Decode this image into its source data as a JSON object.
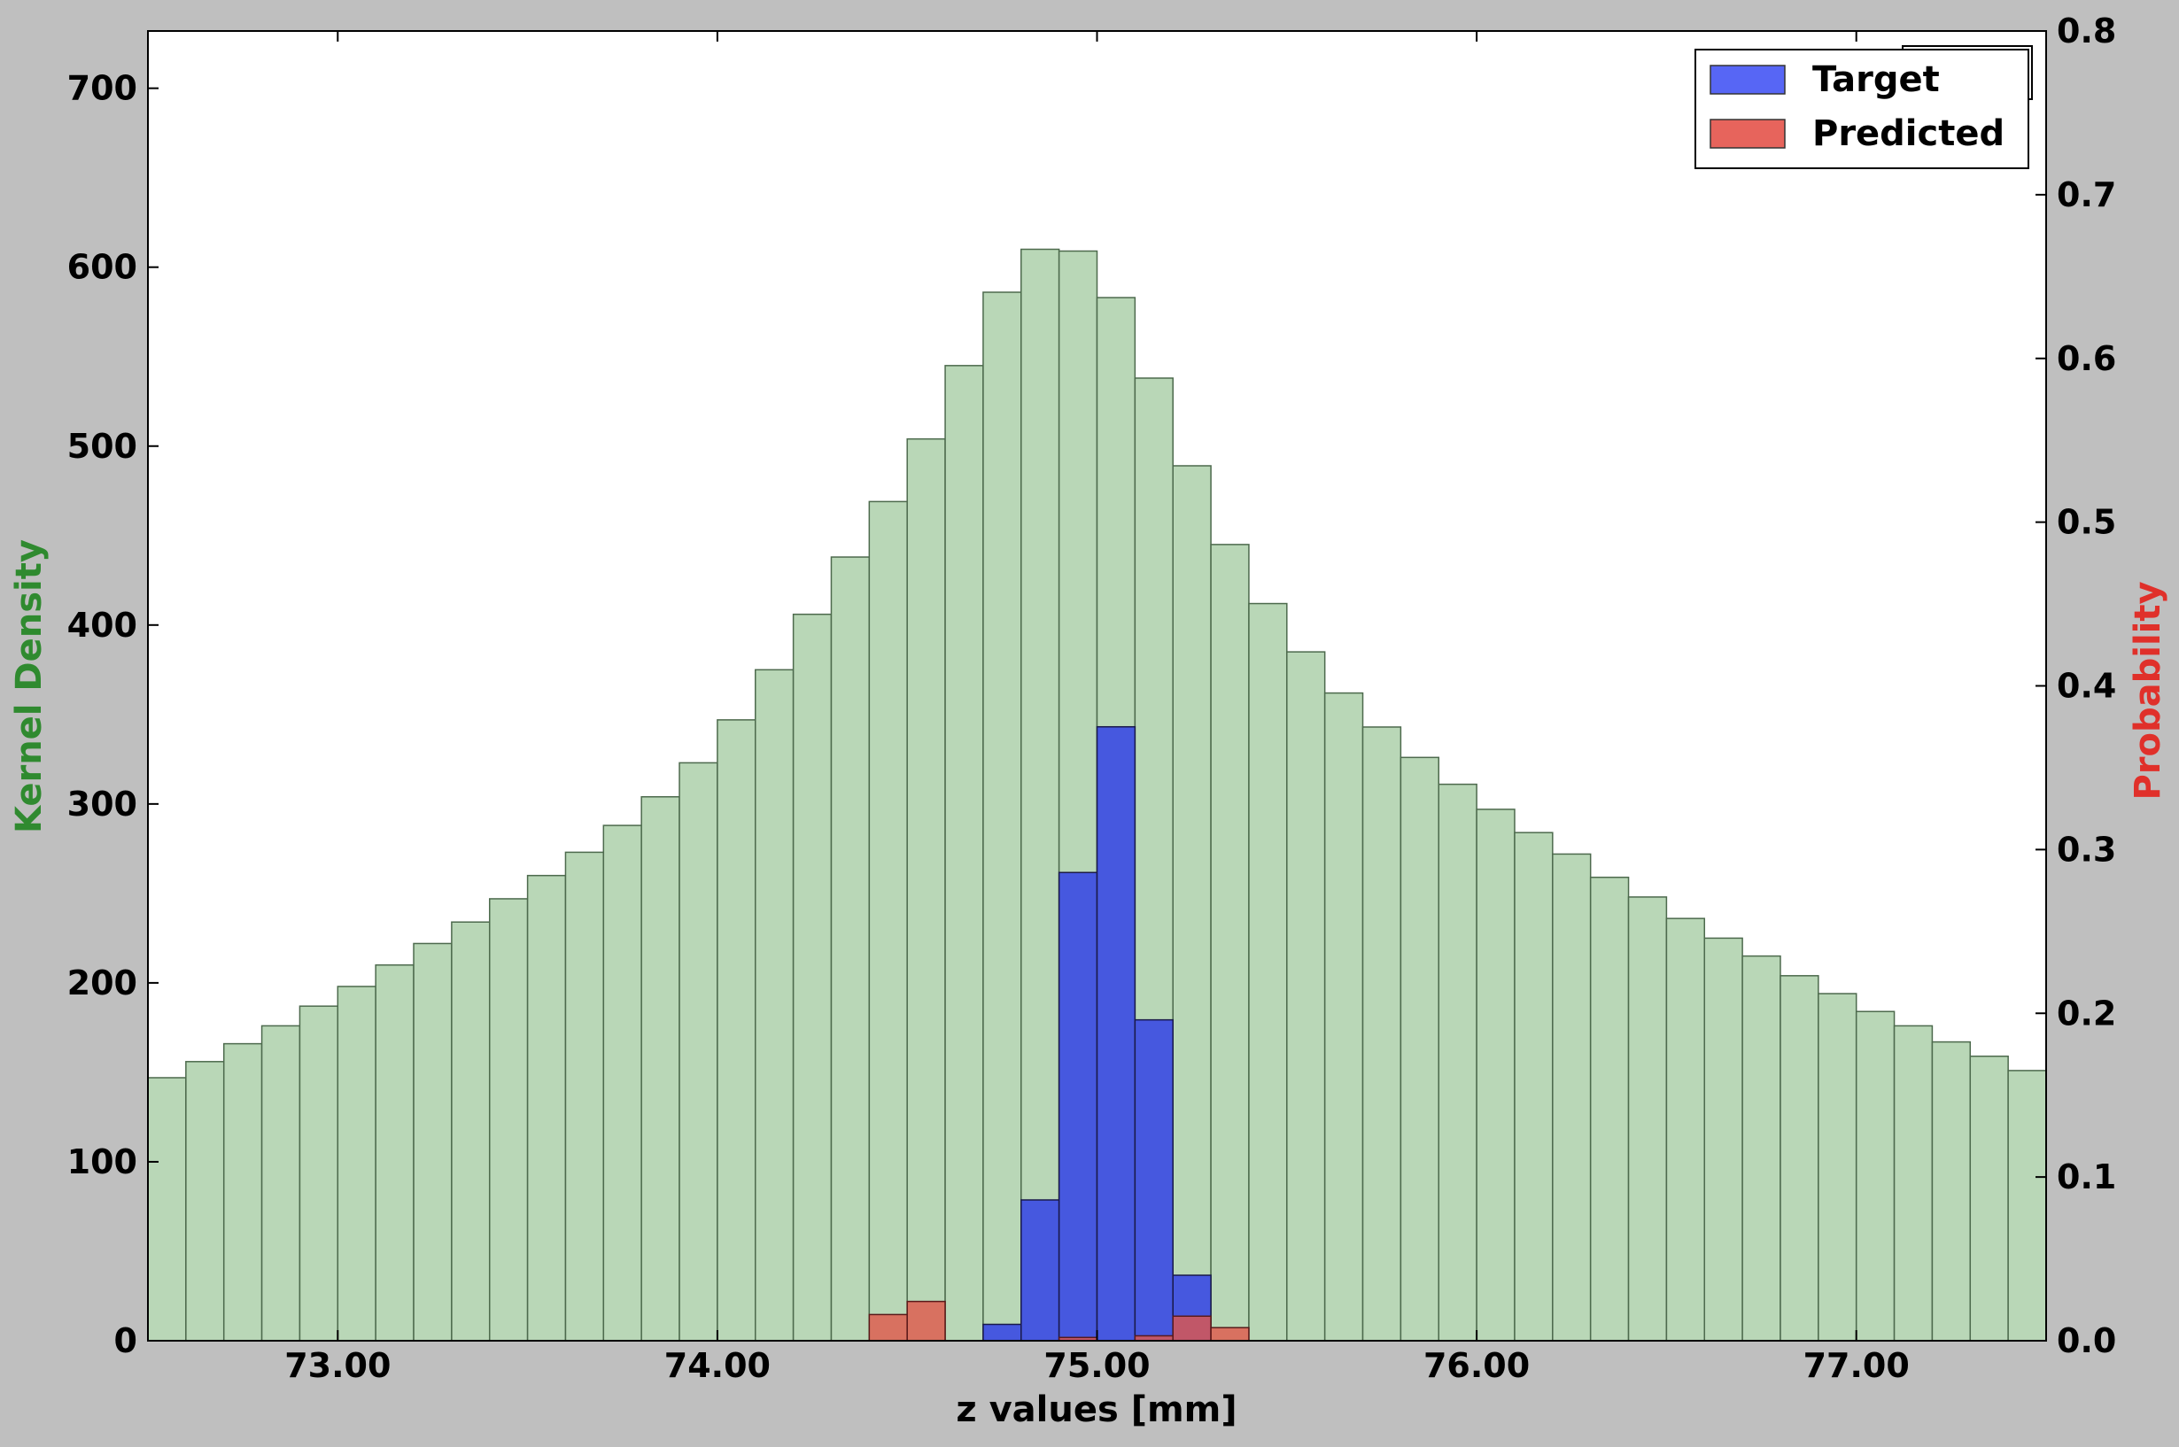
{
  "chart_data": {
    "type": "bar",
    "xlabel": "z values [mm]",
    "ylabel_left": "Kernel Density",
    "ylabel_right": "Probability",
    "xlim": [
      72.5,
      77.5
    ],
    "ylim_left": [
      0,
      732
    ],
    "ylim_right": [
      0,
      0.8
    ],
    "x_ticks": [
      73.0,
      74.0,
      75.0,
      76.0,
      77.0
    ],
    "x_tick_labels": [
      "73.00",
      "74.00",
      "75.00",
      "76.00",
      "77.00"
    ],
    "y_left_ticks": [
      0,
      100,
      200,
      300,
      400,
      500,
      600,
      700
    ],
    "y_left_tick_labels": [
      "0",
      "100",
      "200",
      "300",
      "400",
      "500",
      "600",
      "700"
    ],
    "y_right_ticks": [
      0.0,
      0.1,
      0.2,
      0.3,
      0.4,
      0.5,
      0.6,
      0.7,
      0.8
    ],
    "y_right_tick_labels": [
      "0.0",
      "0.1",
      "0.2",
      "0.3",
      "0.4",
      "0.5",
      "0.6",
      "0.7",
      "0.8"
    ],
    "bin_width": 0.1,
    "legend_position": "top-right",
    "series": [
      {
        "name": "Kernel Density",
        "axis": "left",
        "color": "#b9d7b7",
        "x": [
          72.55,
          72.65,
          72.75,
          72.85,
          72.95,
          73.05,
          73.15,
          73.25,
          73.35,
          73.45,
          73.55,
          73.65,
          73.75,
          73.85,
          73.95,
          74.05,
          74.15,
          74.25,
          74.35,
          74.45,
          74.55,
          74.65,
          74.75,
          74.85,
          74.95,
          75.05,
          75.15,
          75.25,
          75.35,
          75.45,
          75.55,
          75.65,
          75.75,
          75.85,
          75.95,
          76.05,
          76.15,
          76.25,
          76.35,
          76.45,
          76.55,
          76.65,
          76.75,
          76.85,
          76.95,
          77.05,
          77.15,
          77.25,
          77.35,
          77.45
        ],
        "values": [
          147,
          156,
          166,
          176,
          187,
          198,
          210,
          222,
          234,
          247,
          260,
          273,
          288,
          304,
          323,
          347,
          375,
          406,
          438,
          469,
          504,
          545,
          586,
          610,
          609,
          583,
          538,
          489,
          445,
          412,
          385,
          362,
          343,
          326,
          311,
          297,
          284,
          272,
          259,
          248,
          236,
          225,
          215,
          204,
          194,
          184,
          176,
          167,
          159,
          151
        ]
      },
      {
        "name": "Target",
        "axis": "right",
        "color": "#3f51e0",
        "x": [
          74.75,
          74.85,
          74.95,
          75.05,
          75.15,
          75.25
        ],
        "values": [
          0.01,
          0.086,
          0.286,
          0.375,
          0.196,
          0.04
        ]
      },
      {
        "name": "Predicted",
        "axis": "right",
        "color": "#e0574a",
        "x": [
          74.45,
          74.55,
          74.95,
          75.15,
          75.25,
          75.35
        ],
        "values": [
          0.016,
          0.024,
          0.002,
          0.003,
          0.015,
          0.008
        ]
      }
    ]
  }
}
